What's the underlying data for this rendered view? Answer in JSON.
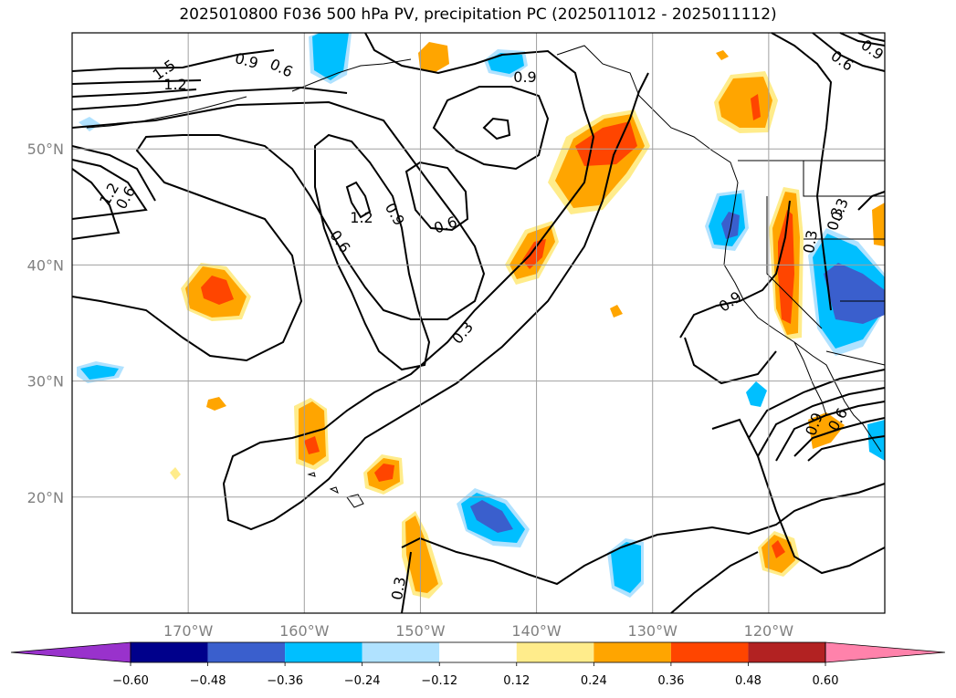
{
  "title": "2025010800 F036 500 hPa PV, precipitation PC (2025011012 - 2025011112)",
  "map": {
    "projection": "PlateCarree",
    "lon_range": [
      -180,
      -110
    ],
    "lat_range": [
      10,
      60
    ],
    "longitude_ticks": [
      "170°W",
      "160°W",
      "150°W",
      "140°W",
      "130°W",
      "120°W"
    ],
    "latitude_ticks": [
      "50°N",
      "40°N",
      "30°N",
      "20°N"
    ],
    "gridlines": true,
    "grid_color": "#a0a0a0"
  },
  "contours": {
    "field": "500 hPa PV",
    "color": "#000000",
    "labels": [
      "1.5",
      "1.2",
      "0.9",
      "0.6",
      "0.9",
      "1.2",
      "0.6",
      "1.2",
      "0.9",
      "0.6",
      "0.6",
      "0.3",
      "0.9",
      "0.3",
      "0.3",
      "0.3",
      "0.9",
      "0.6",
      "0.9",
      "0.6",
      "0.3"
    ]
  },
  "shading": {
    "field": "precipitation PC",
    "colors": {
      "n_lt_-0.60": "#9932cc",
      "n_-0.60_-0.48": "#00008b",
      "n_-0.48_-0.36": "#3a5fcd",
      "n_-0.36_-0.24": "#00bfff",
      "n_-0.24_-0.12": "#b0e2ff",
      "zero": "#ffffff",
      "p_0.12_0.24": "#ffec8b",
      "p_0.24_0.36": "#ffa500",
      "p_0.36_0.48": "#ff4500",
      "p_0.48_0.60": "#b22222",
      "p_gt_0.60": "#ff82ab"
    }
  },
  "colorbar": {
    "extend": "both",
    "colors": [
      "#9932cc",
      "#00008b",
      "#3a5fcd",
      "#00bfff",
      "#b0e2ff",
      "#ffffff",
      "#ffec8b",
      "#ffa500",
      "#ff4500",
      "#b22222",
      "#ff82ab"
    ],
    "tick_labels": [
      "−0.60",
      "−0.48",
      "−0.36",
      "−0.24",
      "−0.12",
      "0.12",
      "0.24",
      "0.36",
      "0.48",
      "0.60"
    ]
  }
}
